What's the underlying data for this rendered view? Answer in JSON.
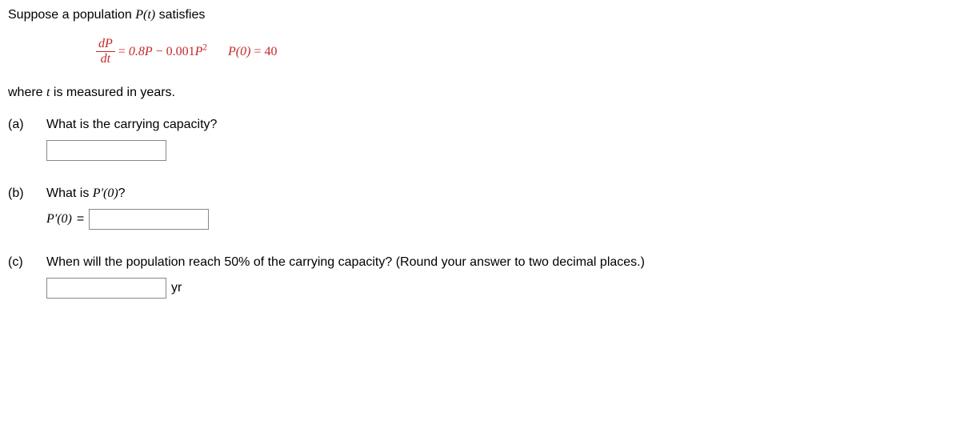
{
  "intro": "Suppose a population ",
  "intro_var": "P(t)",
  "intro_tail": " satisfies",
  "equation": {
    "frac_num": "dP",
    "frac_den": "dt",
    "eq1_sign": " = ",
    "term1": "0.8P",
    "minus": " − ",
    "term2_coef": "0.001",
    "term2_var": "P",
    "term2_sup": "2",
    "ic_lhs": "P(0)",
    "ic_eq": " = ",
    "ic_val": "40"
  },
  "where": "where ",
  "where_var": "t",
  "where_tail": " is measured in years.",
  "parts": {
    "a": {
      "label": "(a)",
      "text": "What is the carrying capacity?"
    },
    "b": {
      "label": "(b)",
      "text1": "What is ",
      "text_var": "P'(0)",
      "text_tail": "?",
      "ans_lhs": "P'(0)",
      "ans_eq": " = "
    },
    "c": {
      "label": "(c)",
      "text": "When will the population reach 50% of the carrying capacity? (Round your answer to two decimal places.)",
      "unit": "yr"
    }
  }
}
